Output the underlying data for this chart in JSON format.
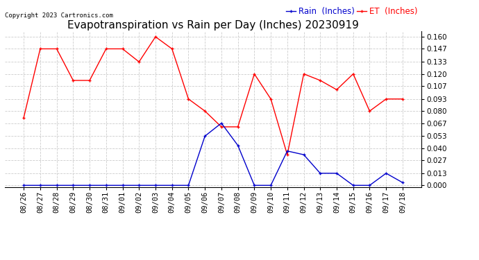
{
  "title": "Evapotranspiration vs Rain per Day (Inches) 20230919",
  "copyright": "Copyright 2023 Cartronics.com",
  "legend_rain": "Rain  (Inches)",
  "legend_et": "ET  (Inches)",
  "dates": [
    "08/26",
    "08/27",
    "08/28",
    "08/29",
    "08/30",
    "08/31",
    "09/01",
    "09/02",
    "09/03",
    "09/04",
    "09/05",
    "09/06",
    "09/07",
    "09/08",
    "09/09",
    "09/10",
    "09/11",
    "09/12",
    "09/13",
    "09/14",
    "09/15",
    "09/16",
    "09/17",
    "09/18"
  ],
  "et_values": [
    0.073,
    0.147,
    0.147,
    0.113,
    0.113,
    0.147,
    0.147,
    0.133,
    0.16,
    0.147,
    0.093,
    0.08,
    0.063,
    0.063,
    0.12,
    0.093,
    0.033,
    0.12,
    0.113,
    0.103,
    0.12,
    0.08,
    0.093,
    0.093
  ],
  "rain_values": [
    0.0,
    0.0,
    0.0,
    0.0,
    0.0,
    0.0,
    0.0,
    0.0,
    0.0,
    0.0,
    0.0,
    0.053,
    0.067,
    0.043,
    0.0,
    0.0,
    0.037,
    0.033,
    0.013,
    0.013,
    0.0,
    0.0,
    0.013,
    0.003
  ],
  "ylim_min": -0.002,
  "ylim_max": 0.166,
  "yticks": [
    0.0,
    0.013,
    0.027,
    0.04,
    0.053,
    0.067,
    0.08,
    0.093,
    0.107,
    0.12,
    0.133,
    0.147,
    0.16
  ],
  "et_color": "#ff0000",
  "rain_color": "#0000cc",
  "background_color": "#ffffff",
  "grid_color": "#cccccc",
  "title_fontsize": 11,
  "tick_fontsize": 7.5,
  "copyright_fontsize": 6.5,
  "legend_fontsize": 8.5,
  "linewidth": 1.0,
  "markersize": 3.5
}
